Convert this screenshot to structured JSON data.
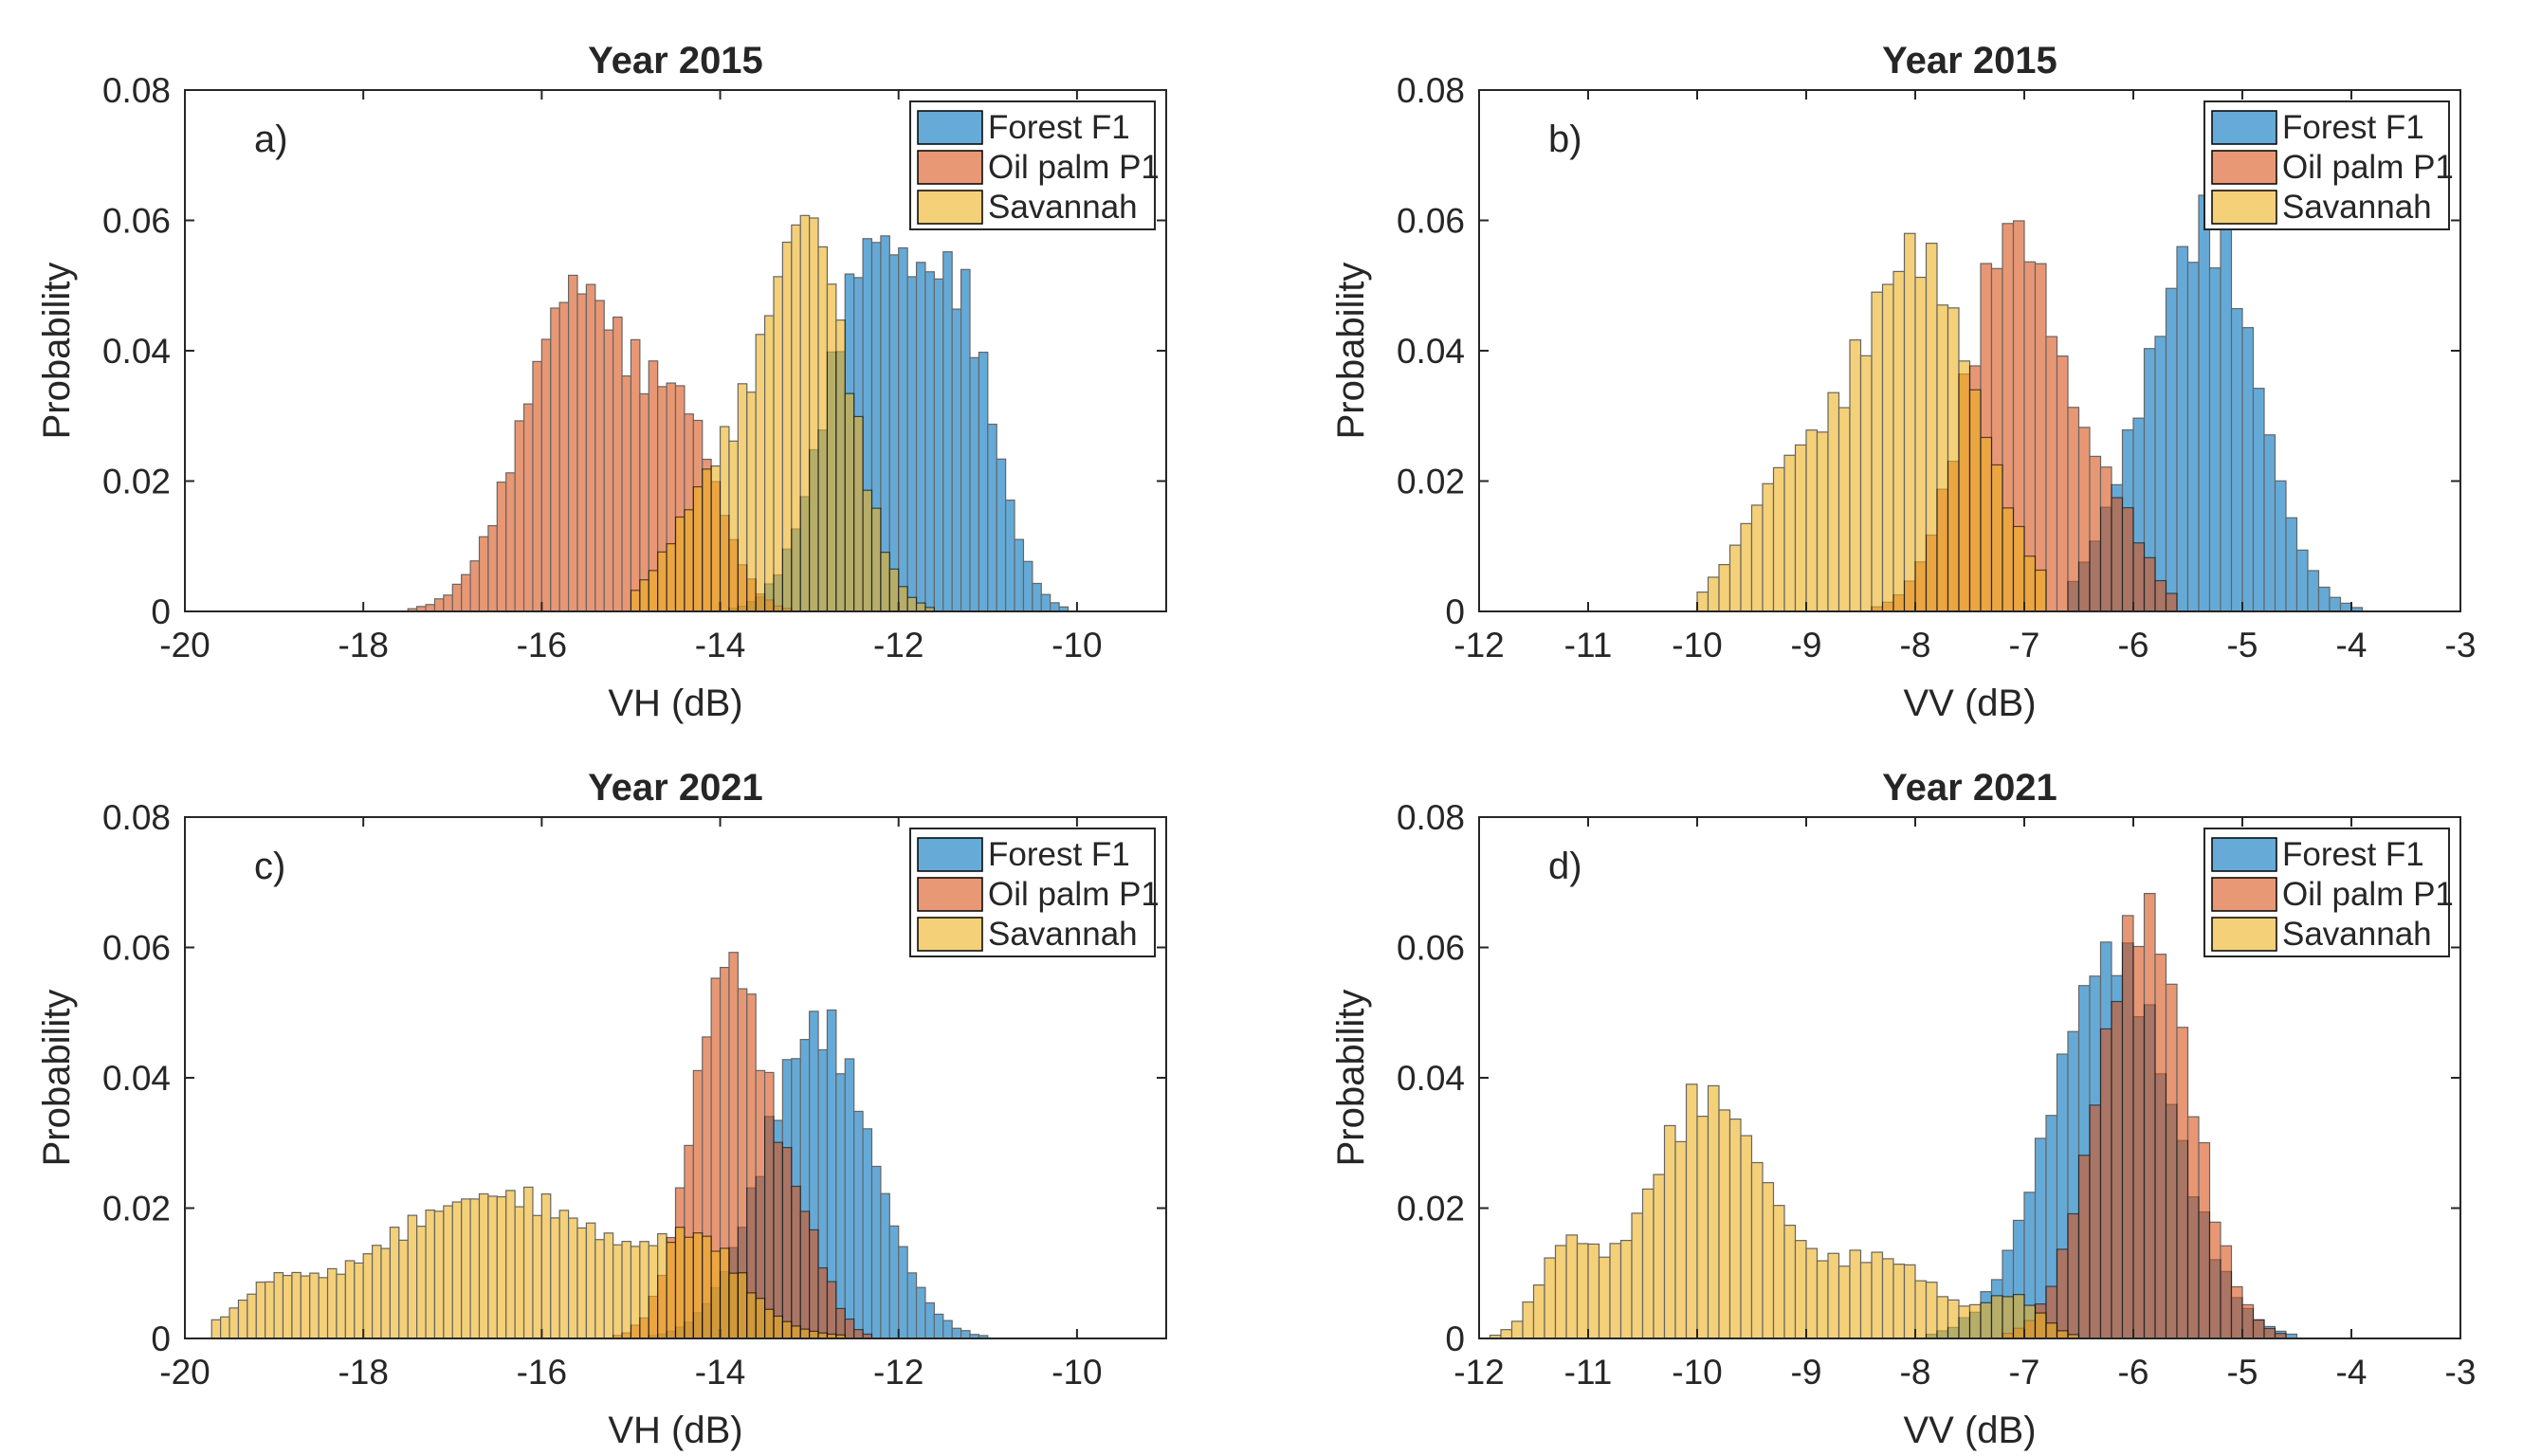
{
  "chart_data": [
    {
      "id": "a",
      "type": "bar",
      "label": "a)",
      "title": "Year 2015",
      "xlabel": "VH (dB)",
      "ylabel": "Probability",
      "xlim": [
        -20,
        -9
      ],
      "ylim": [
        0,
        0.08
      ],
      "xticks": [
        "-20",
        "-18",
        "-16",
        "-14",
        "-12",
        "-10"
      ],
      "yticks": [
        "0",
        "0.02",
        "0.04",
        "0.06",
        "0.08"
      ],
      "legend": [
        "Forest F1",
        "Oil palm P1",
        "Savannah"
      ],
      "bin_width": 0.1,
      "series": [
        {
          "name": "Forest F1",
          "color": "#0072BD",
          "components": [
            {
              "mu": -12.3,
              "sigma": 0.5,
              "amp": 0.055
            },
            {
              "mu": -11.3,
              "sigma": 0.4,
              "amp": 0.042
            }
          ],
          "range": [
            -14.3,
            -9.9
          ]
        },
        {
          "name": "Oil palm P1",
          "color": "#D95319",
          "components": [
            {
              "mu": -15.6,
              "sigma": 0.6,
              "amp": 0.05
            },
            {
              "mu": -14.4,
              "sigma": 0.4,
              "amp": 0.026
            }
          ],
          "range": [
            -17.5,
            -12.8
          ]
        },
        {
          "name": "Savannah",
          "color": "#EDB120",
          "components": [
            {
              "mu": -13.0,
              "sigma": 0.45,
              "amp": 0.058
            },
            {
              "mu": -14.0,
              "sigma": 0.5,
              "amp": 0.02
            }
          ],
          "range": [
            -15.0,
            -11.6
          ]
        }
      ]
    },
    {
      "id": "b",
      "type": "bar",
      "label": "b)",
      "title": "Year 2015",
      "xlabel": "VV (dB)",
      "ylabel": "Probability",
      "xlim": [
        -12,
        -3
      ],
      "ylim": [
        0,
        0.08
      ],
      "xticks": [
        "-12",
        "-11",
        "-10",
        "-9",
        "-8",
        "-7",
        "-6",
        "-5",
        "-4",
        "-3"
      ],
      "yticks": [
        "0",
        "0.02",
        "0.04",
        "0.06",
        "0.08"
      ],
      "legend": [
        "Forest F1",
        "Oil palm P1",
        "Savannah"
      ],
      "bin_width": 0.1,
      "series": [
        {
          "name": "Forest F1",
          "color": "#0072BD",
          "components": [
            {
              "mu": -5.3,
              "sigma": 0.45,
              "amp": 0.057
            },
            {
              "mu": -6.0,
              "sigma": 0.35,
              "amp": 0.012
            }
          ],
          "range": [
            -6.6,
            -3.0
          ]
        },
        {
          "name": "Oil palm P1",
          "color": "#D95319",
          "components": [
            {
              "mu": -7.1,
              "sigma": 0.42,
              "amp": 0.059
            },
            {
              "mu": -6.2,
              "sigma": 0.3,
              "amp": 0.014
            }
          ],
          "range": [
            -8.5,
            -5.6
          ]
        },
        {
          "name": "Savannah",
          "color": "#EDB120",
          "components": [
            {
              "mu": -8.0,
              "sigma": 0.55,
              "amp": 0.055
            },
            {
              "mu": -9.2,
              "sigma": 0.4,
              "amp": 0.018
            }
          ],
          "range": [
            -10.0,
            -6.8
          ]
        }
      ]
    },
    {
      "id": "c",
      "type": "bar",
      "label": "c)",
      "title": "Year 2021",
      "xlabel": "VH (dB)",
      "ylabel": "Probability",
      "xlim": [
        -20,
        -9
      ],
      "ylim": [
        0,
        0.08
      ],
      "xticks": [
        "-20",
        "-18",
        "-16",
        "-14",
        "-12",
        "-10"
      ],
      "yticks": [
        "0",
        "0.02",
        "0.04",
        "0.06",
        "0.08"
      ],
      "legend": [
        "Forest F1",
        "Oil palm P1",
        "Savannah"
      ],
      "bin_width": 0.1,
      "series": [
        {
          "name": "Forest F1",
          "color": "#0072BD",
          "components": [
            {
              "mu": -12.9,
              "sigma": 0.6,
              "amp": 0.048
            }
          ],
          "range": [
            -15.0,
            -10.3
          ]
        },
        {
          "name": "Oil palm P1",
          "color": "#D95319",
          "components": [
            {
              "mu": -13.9,
              "sigma": 0.4,
              "amp": 0.058
            },
            {
              "mu": -13.1,
              "sigma": 0.3,
              "amp": 0.014
            }
          ],
          "range": [
            -16.0,
            -12.0
          ]
        },
        {
          "name": "Savannah",
          "color": "#EDB120",
          "components": [
            {
              "mu": -16.5,
              "sigma": 1.4,
              "amp": 0.022
            },
            {
              "mu": -14.2,
              "sigma": 0.45,
              "amp": 0.01
            },
            {
              "mu": -19.0,
              "sigma": 0.35,
              "amp": 0.005
            }
          ],
          "range": [
            -19.7,
            -12.0
          ]
        }
      ]
    },
    {
      "id": "d",
      "type": "bar",
      "label": "d)",
      "title": "Year 2021",
      "xlabel": "VV (dB)",
      "ylabel": "Probability",
      "xlim": [
        -12,
        -3
      ],
      "ylim": [
        0,
        0.08
      ],
      "xticks": [
        "-12",
        "-11",
        "-10",
        "-9",
        "-8",
        "-7",
        "-6",
        "-5",
        "-4",
        "-3"
      ],
      "yticks": [
        "0",
        "0.02",
        "0.04",
        "0.06",
        "0.08"
      ],
      "legend": [
        "Forest F1",
        "Oil palm P1",
        "Savannah"
      ],
      "bin_width": 0.1,
      "series": [
        {
          "name": "Forest F1",
          "color": "#0072BD",
          "components": [
            {
              "mu": -6.2,
              "sigma": 0.55,
              "amp": 0.059
            }
          ],
          "range": [
            -8.0,
            -3.9
          ]
        },
        {
          "name": "Oil palm P1",
          "color": "#D95319",
          "components": [
            {
              "mu": -5.9,
              "sigma": 0.42,
              "amp": 0.065
            }
          ],
          "range": [
            -7.6,
            -4.4
          ]
        },
        {
          "name": "Savannah",
          "color": "#EDB120",
          "components": [
            {
              "mu": -9.9,
              "sigma": 0.55,
              "amp": 0.037
            },
            {
              "mu": -11.2,
              "sigma": 0.25,
              "amp": 0.013
            },
            {
              "mu": -8.3,
              "sigma": 0.5,
              "amp": 0.012
            },
            {
              "mu": -7.1,
              "sigma": 0.25,
              "amp": 0.006
            }
          ],
          "range": [
            -11.9,
            -6.5
          ]
        }
      ]
    }
  ]
}
